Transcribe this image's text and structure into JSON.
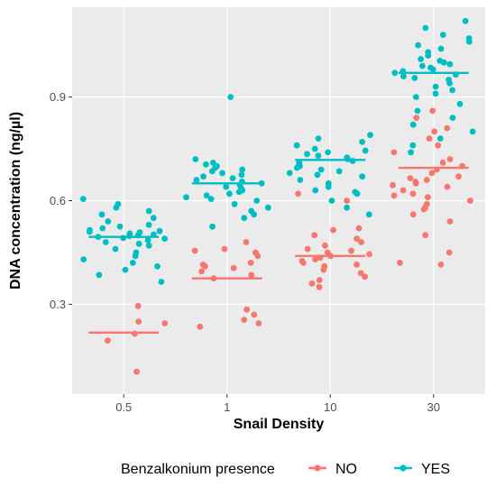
{
  "chart_data": {
    "type": "scatter",
    "xlabel": "Snail Density",
    "ylabel": "DNA concentration (ng/µl)",
    "categories": [
      "0.5",
      "1",
      "10",
      "30"
    ],
    "y_ticks": [
      "0.3",
      "0.6",
      "0.9"
    ],
    "ylim": [
      0.04,
      1.16
    ],
    "grid": true,
    "legend": {
      "title": "Benzalkonium presence",
      "position": "bottom"
    },
    "series": [
      {
        "name": "NO",
        "color": "#F8766D",
        "means": [
          0.218,
          0.375,
          0.44,
          0.695
        ],
        "points": [
          [
            [
              0.105,
              0.195,
              0.215,
              0.245,
              0.25,
              0.295
            ]
          ],
          [
            [
              0.235,
              0.245,
              0.255,
              0.27,
              0.285,
              0.375,
              0.385,
              0.395,
              0.405,
              0.41,
              0.415,
              0.42,
              0.44,
              0.45,
              0.455,
              0.46,
              0.48
            ]
          ],
          [
            [
              0.35,
              0.36,
              0.37,
              0.38,
              0.39,
              0.4,
              0.41,
              0.415,
              0.42,
              0.425,
              0.43,
              0.435,
              0.44,
              0.445,
              0.45,
              0.455,
              0.46,
              0.47,
              0.48,
              0.49,
              0.5,
              0.515,
              0.52,
              0.6,
              0.62
            ]
          ],
          [
            [
              0.415,
              0.42,
              0.45,
              0.5,
              0.54,
              0.56,
              0.575,
              0.58,
              0.59,
              0.6,
              0.61,
              0.615,
              0.62,
              0.63,
              0.64,
              0.645,
              0.65,
              0.655,
              0.66,
              0.665,
              0.67,
              0.68,
              0.69,
              0.7,
              0.71,
              0.72,
              0.74,
              0.76,
              0.78,
              0.8,
              0.81,
              0.84,
              0.86
            ]
          ]
        ]
      },
      {
        "name": "YES",
        "color": "#00BFC4",
        "means": [
          0.495,
          0.65,
          0.718,
          0.97
        ],
        "points": [
          [
            [
              0.365,
              0.385,
              0.4,
              0.41,
              0.42,
              0.43,
              0.44,
              0.45,
              0.46,
              0.47,
              0.475,
              0.48,
              0.485,
              0.49,
              0.492,
              0.495,
              0.498,
              0.5,
              0.502,
              0.505,
              0.508,
              0.51,
              0.512,
              0.515,
              0.52,
              0.525,
              0.53,
              0.54,
              0.55,
              0.56,
              0.57,
              0.58,
              0.59,
              0.605
            ]
          ],
          [
            [
              0.525,
              0.55,
              0.56,
              0.57,
              0.58,
              0.59,
              0.6,
              0.605,
              0.61,
              0.615,
              0.62,
              0.625,
              0.63,
              0.635,
              0.64,
              0.645,
              0.65,
              0.655,
              0.66,
              0.665,
              0.67,
              0.675,
              0.68,
              0.685,
              0.69,
              0.695,
              0.7,
              0.705,
              0.71,
              0.72,
              0.9
            ]
          ],
          [
            [
              0.56,
              0.58,
              0.6,
              0.62,
              0.625,
              0.63,
              0.64,
              0.65,
              0.66,
              0.67,
              0.675,
              0.68,
              0.685,
              0.69,
              0.695,
              0.7,
              0.705,
              0.71,
              0.715,
              0.72,
              0.725,
              0.73,
              0.735,
              0.74,
              0.745,
              0.75,
              0.76,
              0.77,
              0.78,
              0.79
            ]
          ],
          [
            [
              0.74,
              0.76,
              0.78,
              0.8,
              0.82,
              0.84,
              0.86,
              0.88,
              0.9,
              0.91,
              0.92,
              0.93,
              0.94,
              0.95,
              0.955,
              0.96,
              0.965,
              0.97,
              0.975,
              0.98,
              0.985,
              0.99,
              0.995,
              1.0,
              1.005,
              1.01,
              1.02,
              1.03,
              1.04,
              1.05,
              1.06,
              1.07,
              1.08,
              1.1,
              1.12
            ]
          ]
        ]
      }
    ]
  }
}
